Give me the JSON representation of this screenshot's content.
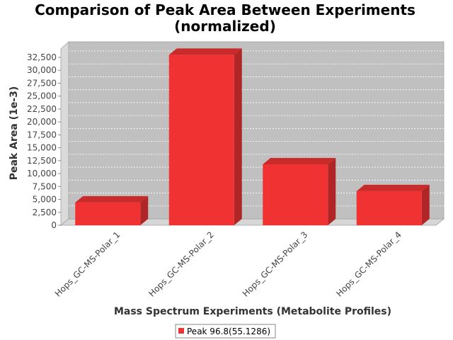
{
  "chart_data": {
    "type": "bar",
    "title_lines": [
      "Comparison of Peak Area Between Experiments",
      "(normalized)"
    ],
    "xlabel": "Mass Spectrum Experiments (Metabolite Profiles)",
    "ylabel": "Peak Area (1e-3)",
    "categories": [
      "Hops_GC-MS-Polar_1",
      "Hops_GC-MS-Polar_2",
      "Hops_GC-MS-Polar_3",
      "Hops_GC-MS-Polar_4"
    ],
    "series": [
      {
        "name": "Peak 96.8(55.1286)",
        "values": [
          4400,
          33000,
          11800,
          6600
        ]
      }
    ],
    "ylim": [
      0,
      32500
    ],
    "y_ticks": [
      "0",
      "2,500",
      "5,000",
      "7,500",
      "10,000",
      "12,500",
      "15,000",
      "17,500",
      "20,000",
      "22,500",
      "25,000",
      "27,500",
      "30,000",
      "32,500"
    ],
    "grid": true,
    "legend_position": "bottom",
    "colors": {
      "bar_front": "#f03232",
      "bar_top": "#c92a2a",
      "bar_side": "#b02525",
      "plot_back": "#c0c0c0",
      "plot_floor": "#d6d6d6",
      "plot_wall": "#dadada"
    }
  }
}
